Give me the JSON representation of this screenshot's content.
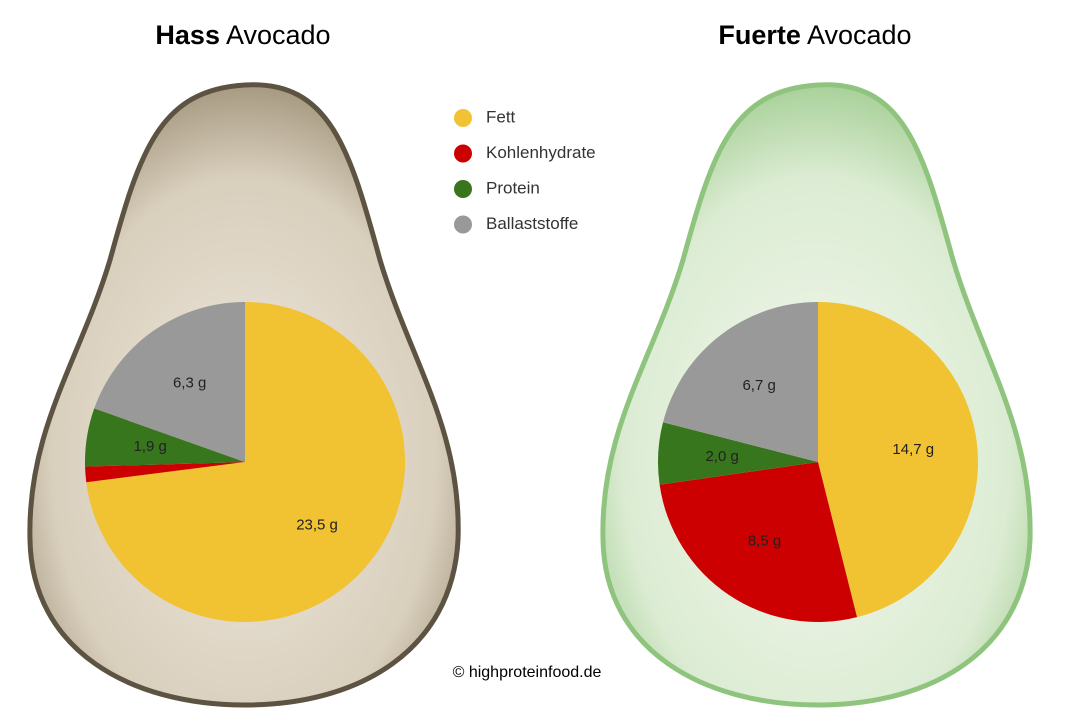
{
  "chart_data": [
    {
      "type": "pie",
      "title_bold": "Hass",
      "title": "Avocado",
      "categories": [
        "Fett",
        "Kohlenhydrate",
        "Protein",
        "Ballaststoffe"
      ],
      "colors": [
        "#f1c232",
        "#cc0000",
        "#38761d",
        "#999999"
      ],
      "values": [
        23.5,
        0.5,
        1.9,
        6.3
      ],
      "value_labels": [
        "23,5 g",
        null,
        "1,9 g",
        "6,3 g"
      ]
    },
    {
      "type": "pie",
      "title_bold": "Fuerte",
      "title": "Avocado",
      "categories": [
        "Fett",
        "Kohlenhydrate",
        "Protein",
        "Ballaststoffe"
      ],
      "colors": [
        "#f1c232",
        "#cc0000",
        "#38761d",
        "#999999"
      ],
      "values": [
        14.7,
        8.5,
        2.0,
        6.7
      ],
      "value_labels": [
        "14,7 g",
        "8,5 g",
        "2,0 g",
        "6,7 g"
      ]
    }
  ],
  "credit": "© highproteinfood.de"
}
